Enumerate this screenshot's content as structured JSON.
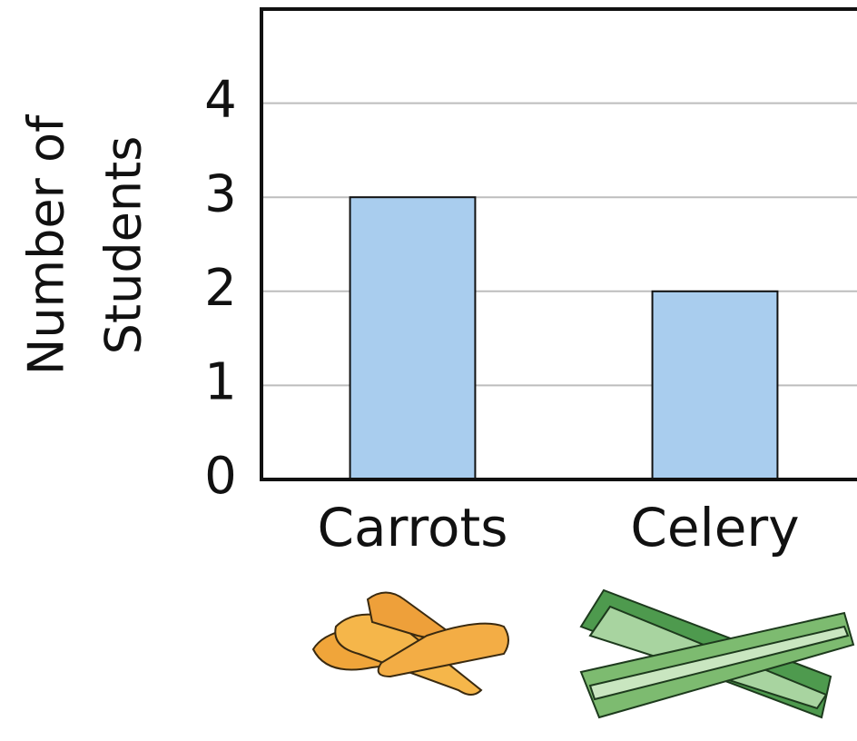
{
  "chart_data": {
    "type": "bar",
    "ylabel": [
      "Number of",
      "Students"
    ],
    "categories": [
      "Carrots",
      "Celery"
    ],
    "values": [
      3,
      2
    ],
    "color": "#a9cdee",
    "ylim": [
      0,
      5
    ],
    "yticks": [
      0,
      1,
      2,
      3,
      4
    ],
    "grid": true
  }
}
